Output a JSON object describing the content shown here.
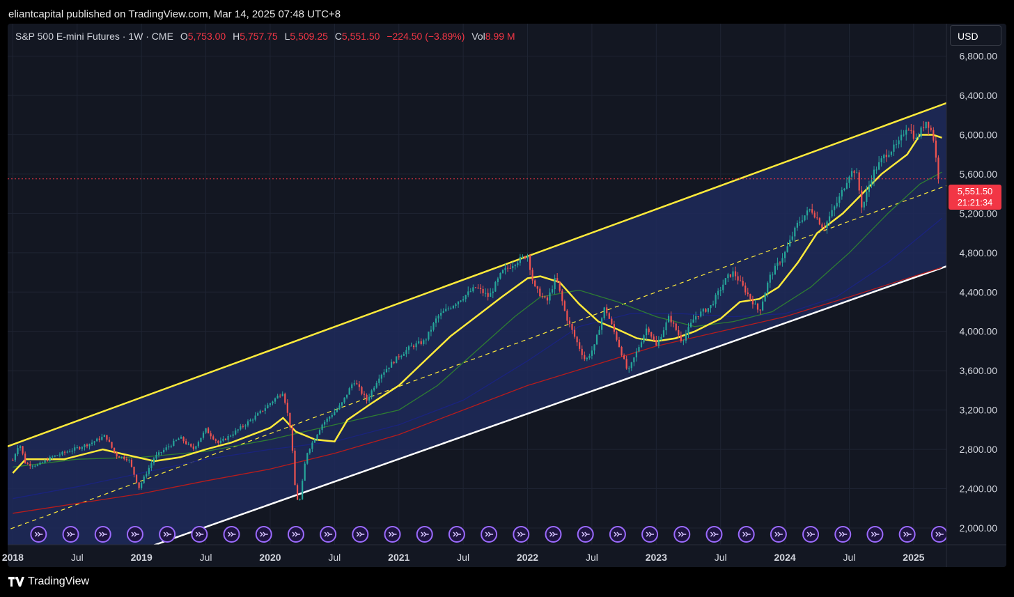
{
  "publisher_line": "eliantcapital published on TradingView.com, Mar 14, 2025 07:48 UTC+8",
  "legend": {
    "symbol": "S&P 500 E-mini Futures · 1W · CME",
    "o_label": "O",
    "o_value": "5,753.00",
    "h_label": "H",
    "h_value": "5,757.75",
    "l_label": "L",
    "l_value": "5,509.25",
    "c_label": "C",
    "c_value": "5,551.50",
    "change": "−224.50 (−3.89%)",
    "vol_label": "Vol",
    "vol_value": "8.99 M"
  },
  "currency": "USD",
  "price_tag": {
    "price": "5,551.50",
    "countdown": "21:21:34"
  },
  "brand": "TradingView",
  "colors": {
    "background": "#131722",
    "up": "#26a69a",
    "down": "#ef5350",
    "channel_top": "#ffeb3b",
    "channel_bottom": "#ffffff",
    "channel_fill": "#1e2a5a",
    "ma_fast": "#ffeb3b",
    "ma_green": "#2e7d32",
    "ma_blue": "#1a237e",
    "ma_red": "#b71c1c",
    "price_line": "#f23645"
  },
  "chart_data": {
    "type": "candlestick",
    "title": "S&P 500 E-mini Futures · 1W · CME",
    "y_axis_ticks": [
      2000,
      2400,
      2800,
      3200,
      3600,
      4000,
      4400,
      4800,
      5200,
      5600,
      6000,
      6400,
      6800
    ],
    "y_axis_labels": [
      "2,000.00",
      "2,400.00",
      "2,800.00",
      "3,200.00",
      "3,600.00",
      "4,000.00",
      "4,400.00",
      "4,800.00",
      "5,200.00",
      "5,600.00",
      "6,000.00",
      "6,400.00",
      "6,800.00"
    ],
    "ylim": [
      1830,
      7130
    ],
    "x_axis_labels": [
      {
        "t": 2018.0,
        "label": "2018",
        "bold": true
      },
      {
        "t": 2018.5,
        "label": "Jul",
        "bold": false
      },
      {
        "t": 2019.0,
        "label": "2019",
        "bold": true
      },
      {
        "t": 2019.5,
        "label": "Jul",
        "bold": false
      },
      {
        "t": 2020.0,
        "label": "2020",
        "bold": true
      },
      {
        "t": 2020.5,
        "label": "Jul",
        "bold": false
      },
      {
        "t": 2021.0,
        "label": "2021",
        "bold": true
      },
      {
        "t": 2021.5,
        "label": "Jul",
        "bold": false
      },
      {
        "t": 2022.0,
        "label": "2022",
        "bold": true
      },
      {
        "t": 2022.5,
        "label": "Jul",
        "bold": false
      },
      {
        "t": 2023.0,
        "label": "2023",
        "bold": true
      },
      {
        "t": 2023.5,
        "label": "Jul",
        "bold": false
      },
      {
        "t": 2024.0,
        "label": "2024",
        "bold": true
      },
      {
        "t": 2024.5,
        "label": "Jul",
        "bold": false
      },
      {
        "t": 2025.0,
        "label": "2025",
        "bold": true
      }
    ],
    "last_price": 5551.5,
    "price_path": [
      [
        2018.0,
        2690
      ],
      [
        2018.05,
        2870
      ],
      [
        2018.1,
        2650
      ],
      [
        2018.2,
        2640
      ],
      [
        2018.3,
        2720
      ],
      [
        2018.45,
        2790
      ],
      [
        2018.6,
        2860
      ],
      [
        2018.72,
        2940
      ],
      [
        2018.8,
        2740
      ],
      [
        2018.9,
        2700
      ],
      [
        2018.98,
        2410
      ],
      [
        2019.1,
        2720
      ],
      [
        2019.3,
        2920
      ],
      [
        2019.4,
        2800
      ],
      [
        2019.5,
        3000
      ],
      [
        2019.6,
        2860
      ],
      [
        2019.75,
        3000
      ],
      [
        2019.9,
        3150
      ],
      [
        2020.05,
        3330
      ],
      [
        2020.1,
        3390
      ],
      [
        2020.16,
        3000
      ],
      [
        2020.2,
        2300
      ],
      [
        2020.23,
        2280
      ],
      [
        2020.28,
        2750
      ],
      [
        2020.4,
        3050
      ],
      [
        2020.55,
        3250
      ],
      [
        2020.65,
        3500
      ],
      [
        2020.75,
        3300
      ],
      [
        2020.85,
        3550
      ],
      [
        2021.0,
        3750
      ],
      [
        2021.1,
        3850
      ],
      [
        2021.2,
        3900
      ],
      [
        2021.3,
        4150
      ],
      [
        2021.45,
        4300
      ],
      [
        2021.6,
        4450
      ],
      [
        2021.7,
        4350
      ],
      [
        2021.8,
        4600
      ],
      [
        2021.9,
        4700
      ],
      [
        2022.0,
        4780
      ],
      [
        2022.05,
        4450
      ],
      [
        2022.15,
        4300
      ],
      [
        2022.22,
        4550
      ],
      [
        2022.3,
        4150
      ],
      [
        2022.38,
        3900
      ],
      [
        2022.45,
        3700
      ],
      [
        2022.52,
        3850
      ],
      [
        2022.6,
        4250
      ],
      [
        2022.7,
        3900
      ],
      [
        2022.78,
        3580
      ],
      [
        2022.85,
        3800
      ],
      [
        2022.93,
        4050
      ],
      [
        2023.0,
        3850
      ],
      [
        2023.1,
        4150
      ],
      [
        2023.2,
        3900
      ],
      [
        2023.3,
        4150
      ],
      [
        2023.42,
        4250
      ],
      [
        2023.55,
        4550
      ],
      [
        2023.6,
        4600
      ],
      [
        2023.7,
        4400
      ],
      [
        2023.8,
        4200
      ],
      [
        2023.88,
        4550
      ],
      [
        2024.0,
        4800
      ],
      [
        2024.1,
        5100
      ],
      [
        2024.2,
        5250
      ],
      [
        2024.3,
        5050
      ],
      [
        2024.42,
        5350
      ],
      [
        2024.5,
        5600
      ],
      [
        2024.55,
        5650
      ],
      [
        2024.6,
        5250
      ],
      [
        2024.68,
        5600
      ],
      [
        2024.78,
        5800
      ],
      [
        2024.88,
        5900
      ],
      [
        2024.95,
        6100
      ],
      [
        2025.02,
        5950
      ],
      [
        2025.1,
        6150
      ],
      [
        2025.15,
        6000
      ],
      [
        2025.19,
        5580
      ],
      [
        2025.21,
        5551.5
      ]
    ],
    "channel": {
      "upper": {
        "from": [
          2018.0,
          2850
        ],
        "to": [
          2025.25,
          6320
        ]
      },
      "lower": {
        "from": [
          2019.15,
          1850
        ],
        "to": [
          2025.25,
          4660
        ]
      },
      "mid_dashed": {
        "from": [
          2018.0,
          2000
        ],
        "to": [
          2025.25,
          5480
        ]
      }
    },
    "moving_averages": [
      {
        "color": "yellow",
        "points": [
          [
            2018.0,
            2560
          ],
          [
            2018.1,
            2700
          ],
          [
            2018.4,
            2700
          ],
          [
            2018.7,
            2800
          ],
          [
            2018.9,
            2740
          ],
          [
            2019.1,
            2680
          ],
          [
            2019.3,
            2720
          ],
          [
            2019.5,
            2800
          ],
          [
            2019.7,
            2870
          ],
          [
            2020.0,
            3020
          ],
          [
            2020.1,
            3120
          ],
          [
            2020.2,
            2980
          ],
          [
            2020.35,
            2900
          ],
          [
            2020.5,
            2880
          ],
          [
            2020.6,
            3100
          ],
          [
            2020.8,
            3280
          ],
          [
            2021.0,
            3450
          ],
          [
            2021.2,
            3700
          ],
          [
            2021.4,
            3950
          ],
          [
            2021.6,
            4150
          ],
          [
            2021.8,
            4350
          ],
          [
            2022.0,
            4540
          ],
          [
            2022.1,
            4560
          ],
          [
            2022.25,
            4500
          ],
          [
            2022.4,
            4280
          ],
          [
            2022.55,
            4100
          ],
          [
            2022.7,
            4020
          ],
          [
            2022.85,
            3930
          ],
          [
            2023.0,
            3900
          ],
          [
            2023.15,
            3930
          ],
          [
            2023.3,
            4000
          ],
          [
            2023.5,
            4130
          ],
          [
            2023.65,
            4300
          ],
          [
            2023.8,
            4330
          ],
          [
            2023.95,
            4450
          ],
          [
            2024.1,
            4700
          ],
          [
            2024.25,
            5000
          ],
          [
            2024.45,
            5200
          ],
          [
            2024.6,
            5400
          ],
          [
            2024.75,
            5600
          ],
          [
            2024.95,
            5800
          ],
          [
            2025.05,
            6000
          ],
          [
            2025.15,
            6000
          ],
          [
            2025.22,
            5970
          ]
        ]
      },
      {
        "color": "green",
        "points": [
          [
            2018.0,
            2620
          ],
          [
            2018.5,
            2700
          ],
          [
            2019.0,
            2720
          ],
          [
            2019.5,
            2780
          ],
          [
            2020.0,
            2900
          ],
          [
            2020.5,
            3050
          ],
          [
            2021.0,
            3200
          ],
          [
            2021.3,
            3450
          ],
          [
            2021.6,
            3800
          ],
          [
            2021.9,
            4150
          ],
          [
            2022.1,
            4350
          ],
          [
            2022.4,
            4420
          ],
          [
            2022.7,
            4300
          ],
          [
            2023.0,
            4150
          ],
          [
            2023.3,
            4050
          ],
          [
            2023.6,
            4100
          ],
          [
            2023.9,
            4200
          ],
          [
            2024.2,
            4450
          ],
          [
            2024.5,
            4800
          ],
          [
            2024.8,
            5200
          ],
          [
            2025.05,
            5500
          ],
          [
            2025.22,
            5620
          ]
        ]
      },
      {
        "color": "blue",
        "points": [
          [
            2018.0,
            2300
          ],
          [
            2018.5,
            2420
          ],
          [
            2019.0,
            2560
          ],
          [
            2019.5,
            2700
          ],
          [
            2020.0,
            2800
          ],
          [
            2020.5,
            2880
          ],
          [
            2021.0,
            3050
          ],
          [
            2021.5,
            3300
          ],
          [
            2022.0,
            3700
          ],
          [
            2022.4,
            4050
          ],
          [
            2022.8,
            4180
          ],
          [
            2023.2,
            4180
          ],
          [
            2023.6,
            4150
          ],
          [
            2024.0,
            4180
          ],
          [
            2024.4,
            4350
          ],
          [
            2024.8,
            4700
          ],
          [
            2025.22,
            5150
          ]
        ]
      },
      {
        "color": "red",
        "points": [
          [
            2018.0,
            2150
          ],
          [
            2019.0,
            2350
          ],
          [
            2019.5,
            2480
          ],
          [
            2020.0,
            2600
          ],
          [
            2020.5,
            2760
          ],
          [
            2021.0,
            2950
          ],
          [
            2021.5,
            3200
          ],
          [
            2022.0,
            3450
          ],
          [
            2022.5,
            3650
          ],
          [
            2023.0,
            3850
          ],
          [
            2023.5,
            4000
          ],
          [
            2024.0,
            4150
          ],
          [
            2024.5,
            4350
          ],
          [
            2025.0,
            4560
          ],
          [
            2025.22,
            4650
          ]
        ]
      }
    ]
  }
}
